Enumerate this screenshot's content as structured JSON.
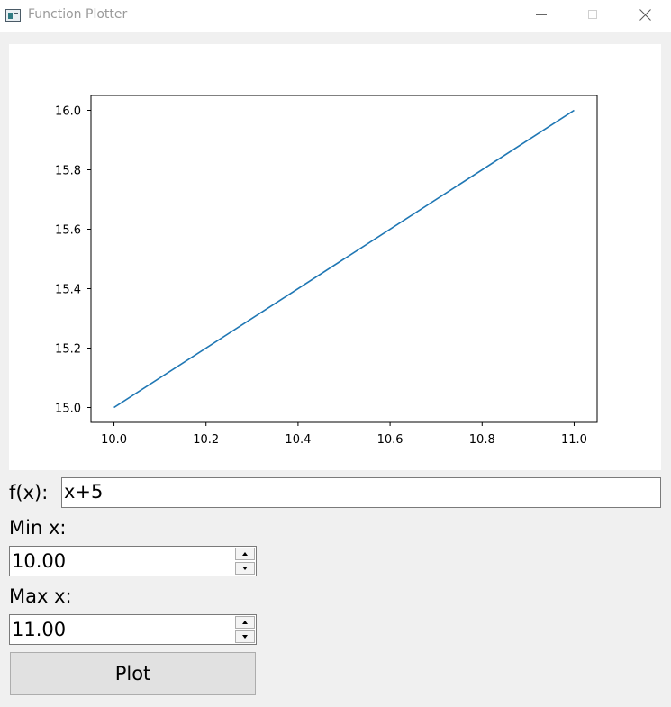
{
  "window": {
    "title": "Function Plotter",
    "icon": "app-icon",
    "controls": [
      "minimize-icon",
      "maximize-icon",
      "close-icon"
    ]
  },
  "chart_data": {
    "type": "line",
    "x": [
      10.0,
      11.0
    ],
    "y": [
      15.0,
      16.0
    ],
    "xlim": [
      9.95,
      11.05
    ],
    "ylim": [
      14.95,
      16.05
    ],
    "xticks": [
      "10.0",
      "10.2",
      "10.4",
      "10.6",
      "10.8",
      "11.0"
    ],
    "yticks": [
      "15.0",
      "15.2",
      "15.4",
      "15.6",
      "15.8",
      "16.0"
    ],
    "line_color": "#1f77b4",
    "grid": false,
    "title": "",
    "xlabel": "",
    "ylabel": ""
  },
  "form": {
    "fx_label": "f(x):",
    "fx_value": "x+5",
    "min_label": "Min x:",
    "min_value": "10.00",
    "max_label": "Max x:",
    "max_value": "11.00",
    "plot_label": "Plot"
  }
}
